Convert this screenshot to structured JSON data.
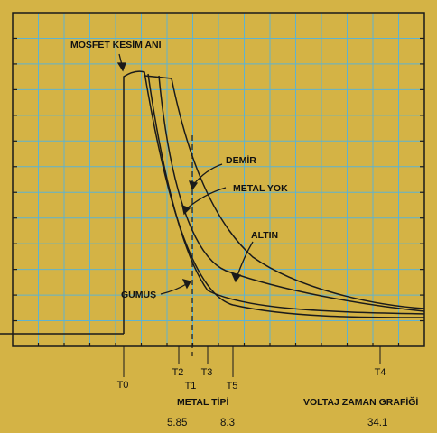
{
  "colors": {
    "background": "#d4b345",
    "grid": "#5fb3cf",
    "frame": "#1a1a1a",
    "curve": "#1a1a1a"
  },
  "chart_data": {
    "type": "line",
    "title": "VOLTAJ ZAMAN GRAFİĞİ",
    "x_axis_title": "METAL TİPİ",
    "x_ticks": [
      "T0",
      "T2",
      "T1",
      "T3",
      "T5",
      "T4"
    ],
    "x_values": [
      "5.85",
      "8.3",
      "34.1"
    ],
    "annotations": {
      "mosfet": "MOSFET KESİM ANI",
      "demir": "DEMİR",
      "metal_yok": "METAL YOK",
      "altin": "ALTIN",
      "gumus": "GÜMÜŞ"
    },
    "grid": true,
    "series_count": 4
  }
}
